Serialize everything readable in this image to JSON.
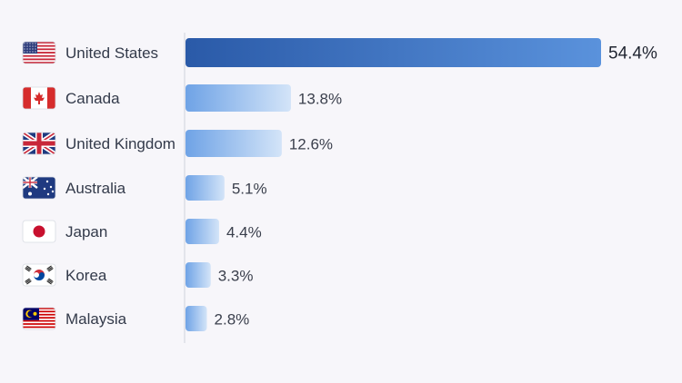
{
  "chart_data": {
    "type": "bar",
    "orientation": "horizontal",
    "categories": [
      "United States",
      "Canada",
      "United Kingdom",
      "Australia",
      "Japan",
      "Korea",
      "Malaysia"
    ],
    "values": [
      54.4,
      13.8,
      12.6,
      5.1,
      4.4,
      3.3,
      2.8
    ],
    "value_labels": [
      "54.4%",
      "13.8%",
      "12.6%",
      "5.1%",
      "4.4%",
      "3.3%",
      "2.8%"
    ],
    "flags": [
      "us-flag-icon",
      "canada-flag-icon",
      "uk-flag-icon",
      "australia-flag-icon",
      "japan-flag-icon",
      "korea-flag-icon",
      "malaysia-flag-icon"
    ],
    "title": "",
    "xlabel": "",
    "ylabel": "",
    "grid": false,
    "legend": "none",
    "colors": {
      "top_bar_start": "#2a5aa8",
      "top_bar_end": "#5a92dc",
      "bar_start": "#6fa3e6",
      "bar_end": "#cfe1f7"
    }
  }
}
